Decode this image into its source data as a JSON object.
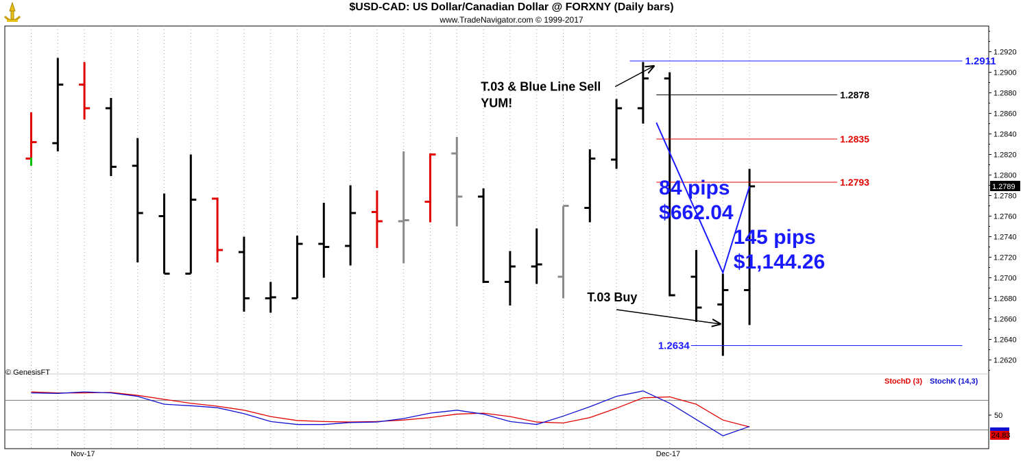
{
  "header": {
    "title": "$USD-CAD:  US Dollar/Canadian Dollar @ FORXNY  (Daily bars)",
    "copyright": "www.TradeNavigator.com © 1999-2017",
    "watermark": "© GenesisFT"
  },
  "colors": {
    "up_bar": "#000000",
    "down_bar": "#e00000",
    "neutral_bar": "#8a8a8a",
    "annotation_blue": "#1a1aff",
    "stoch_k": "#1010d0",
    "stoch_d": "#e00000",
    "grid": "#a8a8a8"
  },
  "chart_data": [
    {
      "type": "ohlc",
      "title": "$USD-CAD:  US Dollar/Canadian Dollar @ FORXNY  (Daily bars)",
      "x_tick_labels": [
        "Nov-17",
        "Dec-17"
      ],
      "y_ticks": [
        1.262,
        1.264,
        1.266,
        1.268,
        1.27,
        1.272,
        1.274,
        1.276,
        1.278,
        1.28,
        1.282,
        1.284,
        1.286,
        1.288,
        1.29,
        1.292
      ],
      "ylim": [
        1.2607,
        1.2945
      ],
      "grid": "dotted vertical",
      "last_price": "1.2789",
      "bars": [
        {
          "o": 1.2816,
          "h": 1.2861,
          "l": 1.2809,
          "c": 1.2832,
          "color": "red"
        },
        {
          "o": 1.2831,
          "h": 1.2914,
          "l": 1.2823,
          "c": 1.2888,
          "color": "black"
        },
        {
          "o": 1.2888,
          "h": 1.291,
          "l": 1.2854,
          "c": 1.2865,
          "color": "red"
        },
        {
          "o": 1.2865,
          "h": 1.2875,
          "l": 1.2799,
          "c": 1.2808,
          "color": "black"
        },
        {
          "o": 1.2809,
          "h": 1.2836,
          "l": 1.2715,
          "c": 1.2763,
          "color": "black"
        },
        {
          "o": 1.276,
          "h": 1.2782,
          "l": 1.2704,
          "c": 1.2704,
          "color": "black"
        },
        {
          "o": 1.2704,
          "h": 1.282,
          "l": 1.2704,
          "c": 1.2776,
          "color": "black"
        },
        {
          "o": 1.2777,
          "h": 1.2778,
          "l": 1.2715,
          "c": 1.2727,
          "color": "red"
        },
        {
          "o": 1.2725,
          "h": 1.274,
          "l": 1.2667,
          "c": 1.268,
          "color": "black"
        },
        {
          "o": 1.268,
          "h": 1.2696,
          "l": 1.2666,
          "c": 1.2681,
          "color": "black"
        },
        {
          "o": 1.268,
          "h": 1.2741,
          "l": 1.268,
          "c": 1.2733,
          "color": "black"
        },
        {
          "o": 1.2733,
          "h": 1.2773,
          "l": 1.27,
          "c": 1.273,
          "color": "black"
        },
        {
          "o": 1.2731,
          "h": 1.279,
          "l": 1.2712,
          "c": 1.2763,
          "color": "black"
        },
        {
          "o": 1.2764,
          "h": 1.2785,
          "l": 1.2729,
          "c": 1.2755,
          "color": "red"
        },
        {
          "o": 1.2755,
          "h": 1.2823,
          "l": 1.2714,
          "c": 1.2756,
          "color": "gray"
        },
        {
          "o": 1.2774,
          "h": 1.2821,
          "l": 1.2754,
          "c": 1.282,
          "color": "red"
        },
        {
          "o": 1.2821,
          "h": 1.2837,
          "l": 1.275,
          "c": 1.2779,
          "color": "gray"
        },
        {
          "o": 1.2779,
          "h": 1.2787,
          "l": 1.2695,
          "c": 1.2696,
          "color": "black"
        },
        {
          "o": 1.2696,
          "h": 1.2726,
          "l": 1.2673,
          "c": 1.2711,
          "color": "black"
        },
        {
          "o": 1.2711,
          "h": 1.2748,
          "l": 1.2694,
          "c": 1.2713,
          "color": "black"
        },
        {
          "o": 1.2701,
          "h": 1.277,
          "l": 1.268,
          "c": 1.277,
          "color": "gray"
        },
        {
          "o": 1.2768,
          "h": 1.2825,
          "l": 1.2754,
          "c": 1.2816,
          "color": "black"
        },
        {
          "o": 1.2815,
          "h": 1.2874,
          "l": 1.2806,
          "c": 1.2865,
          "color": "black"
        },
        {
          "o": 1.2865,
          "h": 1.291,
          "l": 1.285,
          "c": 1.2894,
          "color": "black"
        },
        {
          "o": 1.2894,
          "h": 1.29,
          "l": 1.2682,
          "c": 1.2683,
          "color": "black"
        },
        {
          "o": 1.2701,
          "h": 1.2727,
          "l": 1.2657,
          "c": 1.2671,
          "color": "black"
        },
        {
          "o": 1.2674,
          "h": 1.2704,
          "l": 1.2624,
          "c": 1.2688,
          "color": "black"
        },
        {
          "o": 1.2688,
          "h": 1.2806,
          "l": 1.2654,
          "c": 1.2789,
          "color": "black"
        }
      ],
      "levels": [
        {
          "value": 1.2911,
          "label": "1.2911",
          "color": "#1a1aff",
          "from_bar": 22.5,
          "to_bar": 35
        },
        {
          "value": 1.2878,
          "label": "1.2878",
          "color": "#000000",
          "from_bar": 23.5,
          "to_bar": 30.3
        },
        {
          "value": 1.2835,
          "label": "1.2835",
          "color": "#e00000",
          "from_bar": 23.5,
          "to_bar": 30.3
        },
        {
          "value": 1.2793,
          "label": "1.2793",
          "color": "#e00000",
          "from_bar": 23.5,
          "to_bar": 30.3
        },
        {
          "value": 1.2634,
          "label": "1.2634",
          "color": "#1a1aff",
          "from_bar": 24.8,
          "to_bar": 35
        }
      ],
      "swing_line": [
        {
          "bar": 23.5,
          "price": 1.2851
        },
        {
          "bar": 26.0,
          "price": 1.2705
        },
        {
          "bar": 27.0,
          "price": 1.2789
        }
      ],
      "annotations": [
        {
          "text": "T.03 & Blue Line Sell",
          "bar": 16.9,
          "price": 1.2882,
          "size": 18,
          "color": "#000000"
        },
        {
          "text": "YUM!",
          "bar": 16.9,
          "price": 1.2866,
          "size": 18,
          "color": "#000000"
        },
        {
          "text": "T.03 Buy",
          "bar": 20.9,
          "price": 1.2677,
          "size": 18,
          "color": "#000000"
        },
        {
          "text": "84 pips",
          "bar": 23.6,
          "price": 1.2781,
          "size": 30,
          "color": "#1a1aff"
        },
        {
          "text": "$662.04",
          "bar": 23.6,
          "price": 1.2757,
          "size": 30,
          "color": "#1a1aff"
        },
        {
          "text": "145 pips",
          "bar": 26.4,
          "price": 1.2733,
          "size": 30,
          "color": "#1a1aff"
        },
        {
          "text": "$1,144.26",
          "bar": 26.4,
          "price": 1.2709,
          "size": 30,
          "color": "#1a1aff"
        }
      ],
      "arrows": [
        {
          "from": {
            "bar": 21.95,
            "price": 1.2886
          },
          "to": {
            "bar": 23.4,
            "price": 1.2906
          }
        },
        {
          "from": {
            "bar": 22.0,
            "price": 1.2669
          },
          "to": {
            "bar": 25.9,
            "price": 1.2655
          }
        }
      ]
    },
    {
      "type": "line",
      "title": "",
      "ylim": [
        0,
        100
      ],
      "y_ticks": [
        50
      ],
      "reference_lines": [
        80,
        20
      ],
      "value_labels": [
        "24.83"
      ],
      "series": [
        {
          "name": "StochD (3)",
          "color": "#e00000",
          "values": [
            97,
            95,
            95,
            96,
            90,
            82,
            74,
            68,
            60,
            47,
            39,
            37,
            36,
            37,
            40,
            45,
            52,
            54,
            47,
            36,
            34,
            45,
            64,
            85,
            87,
            72,
            40,
            26
          ]
        },
        {
          "name": "StochK (14,3)",
          "color": "#1010d0",
          "values": [
            95,
            94,
            97,
            95,
            88,
            72,
            69,
            65,
            53,
            37,
            31,
            31,
            35,
            36,
            43,
            54,
            60,
            52,
            37,
            31,
            48,
            67,
            88,
            99,
            74,
            41,
            8,
            27
          ]
        }
      ]
    }
  ]
}
